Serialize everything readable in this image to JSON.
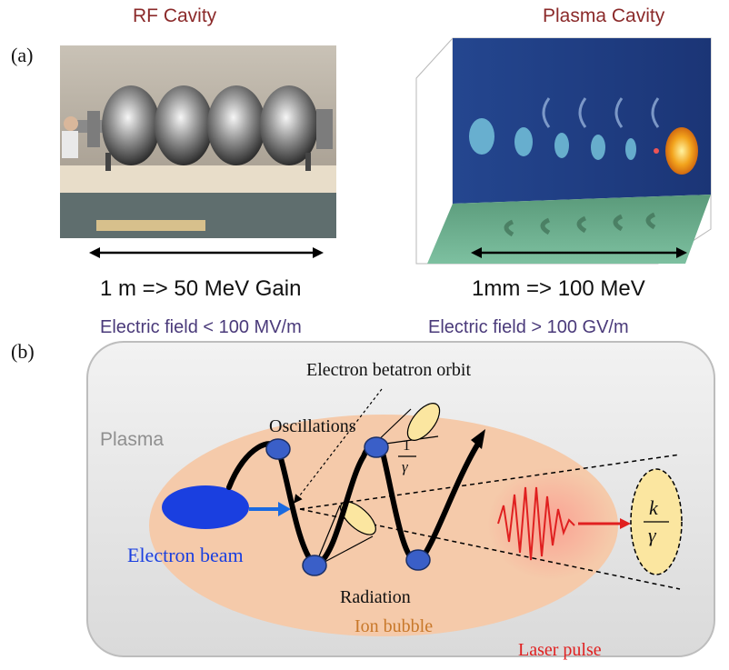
{
  "panel_a": {
    "label": "(a)",
    "left": {
      "title": "RF Cavity",
      "gain": "1 m => 50 MeV Gain",
      "field": "Electric field < 100 MV/m"
    },
    "right": {
      "title": "Plasma Cavity",
      "gain": "1mm => 100 MeV",
      "field": "Electric field > 100 GV/m"
    }
  },
  "panel_b": {
    "label": "(b)",
    "labels": {
      "orbit": "Electron betatron orbit",
      "oscillations": "Oscillations",
      "plasma": "Plasma",
      "electron_beam": "Electron beam",
      "radiation": "Radiation",
      "ion_bubble": "Ion bubble",
      "laser_pulse": "Laser pulse",
      "cone_num": "1",
      "cone_den": "γ",
      "ellipse_num": "k",
      "ellipse_den": "γ"
    }
  },
  "colors": {
    "title_red": "#8b2a2a",
    "field_purple": "#4a3a7a",
    "bubble_fill": "#f6c8a6",
    "electron_blue": "#1a3fe0",
    "node_blue": "#3a5fc8",
    "laser_red": "#e02020",
    "cone_yellow": "#fbe6a0"
  }
}
